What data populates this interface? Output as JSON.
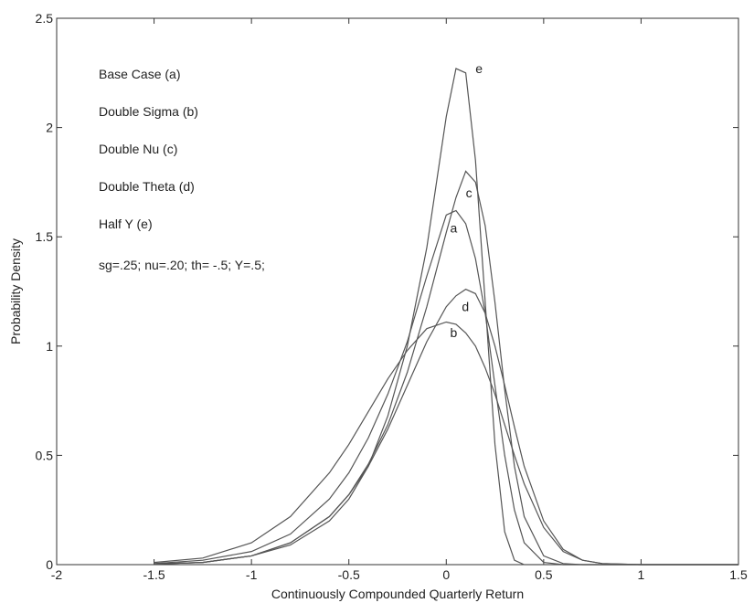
{
  "chart_data": {
    "type": "line",
    "xlabel": "Continuously Compounded Quarterly Return",
    "ylabel": "Probability Density",
    "notes": [
      "Base Case (a)",
      "Double Sigma (b)",
      "Double Nu (c)",
      "Double Theta (d)",
      "Half Y (e)",
      "sg=.25; nu=.20; th= -.5; Y=.5;"
    ],
    "x": [
      -1.5,
      -1.25,
      -1,
      -0.8,
      -0.6,
      -0.5,
      -0.4,
      -0.3,
      -0.2,
      -0.1,
      0,
      0.05,
      0.1,
      0.15,
      0.2,
      0.25,
      0.3,
      0.35,
      0.4,
      0.5,
      0.6,
      0.7,
      0.8,
      1,
      1.25,
      1.5
    ],
    "series": [
      {
        "name": "a",
        "color": "#555555",
        "values": [
          0.005,
          0.02,
          0.06,
          0.14,
          0.3,
          0.42,
          0.58,
          0.78,
          1.02,
          1.32,
          1.6,
          1.62,
          1.56,
          1.4,
          1.15,
          0.82,
          0.5,
          0.25,
          0.1,
          0.01,
          0,
          0,
          0,
          0,
          0,
          0
        ]
      },
      {
        "name": "b",
        "color": "#555555",
        "values": [
          0.01,
          0.03,
          0.1,
          0.22,
          0.42,
          0.55,
          0.7,
          0.85,
          0.98,
          1.08,
          1.11,
          1.1,
          1.06,
          1.0,
          0.9,
          0.78,
          0.64,
          0.5,
          0.37,
          0.17,
          0.06,
          0.02,
          0.005,
          0,
          0,
          0
        ]
      },
      {
        "name": "c",
        "color": "#555555",
        "values": [
          0.003,
          0.01,
          0.04,
          0.1,
          0.22,
          0.32,
          0.46,
          0.64,
          0.88,
          1.18,
          1.52,
          1.68,
          1.8,
          1.75,
          1.55,
          1.2,
          0.8,
          0.45,
          0.22,
          0.04,
          0.005,
          0,
          0,
          0,
          0,
          0
        ]
      },
      {
        "name": "d",
        "color": "#555555",
        "values": [
          0.003,
          0.01,
          0.04,
          0.1,
          0.22,
          0.32,
          0.45,
          0.62,
          0.82,
          1.02,
          1.18,
          1.23,
          1.26,
          1.24,
          1.15,
          1.0,
          0.82,
          0.63,
          0.45,
          0.2,
          0.07,
          0.02,
          0.005,
          0,
          0,
          0
        ]
      },
      {
        "name": "e",
        "color": "#555555",
        "values": [
          0.003,
          0.01,
          0.04,
          0.09,
          0.2,
          0.3,
          0.45,
          0.68,
          1.0,
          1.45,
          2.05,
          2.27,
          2.25,
          1.85,
          1.2,
          0.55,
          0.15,
          0.02,
          0,
          0,
          0,
          0,
          0,
          0,
          0,
          0
        ]
      }
    ],
    "annotations": [
      {
        "text": "a",
        "x": 0.02,
        "y": 1.52
      },
      {
        "text": "b",
        "x": 0.02,
        "y": 1.04
      },
      {
        "text": "c",
        "x": 0.1,
        "y": 1.68
      },
      {
        "text": "d",
        "x": 0.08,
        "y": 1.16
      },
      {
        "text": "e",
        "x": 0.15,
        "y": 2.25
      }
    ],
    "xlim": [
      -2,
      1.5
    ],
    "xticks": [
      -2,
      -1.5,
      -1,
      -0.5,
      0,
      0.5,
      1,
      1.5
    ],
    "ylim": [
      0,
      2.5
    ],
    "yticks": [
      0,
      0.5,
      1,
      1.5,
      2,
      2.5
    ],
    "grid": false
  }
}
